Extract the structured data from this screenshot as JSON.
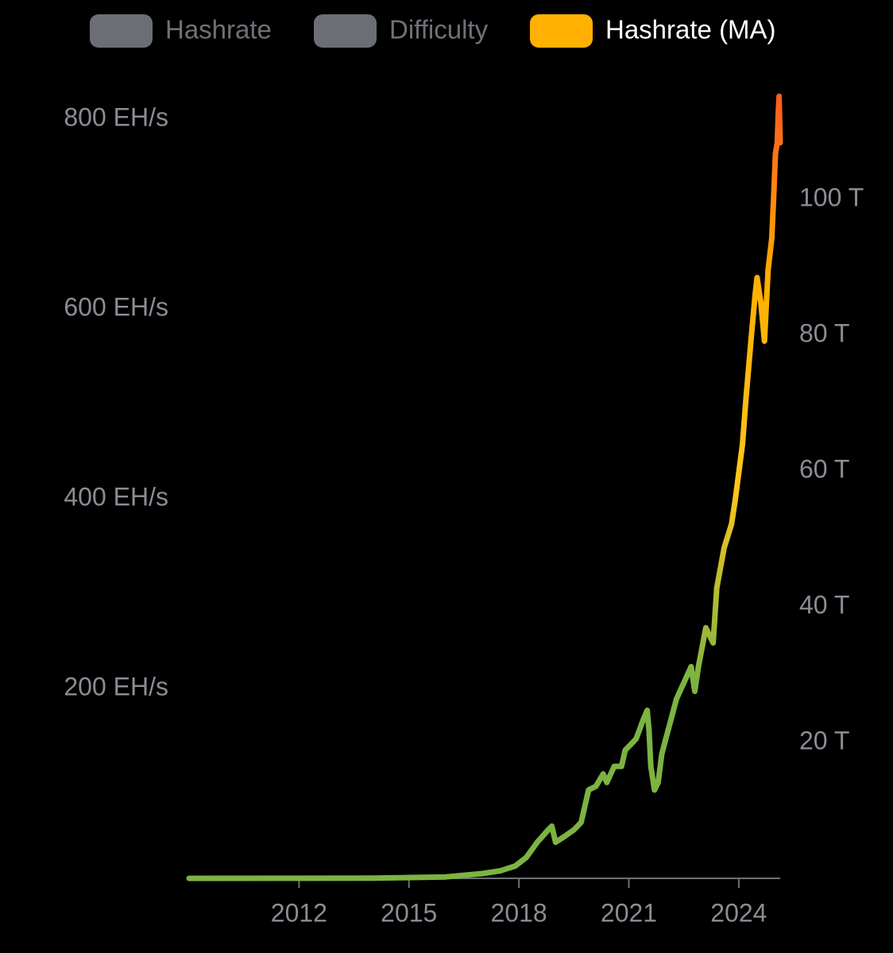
{
  "chart_data": {
    "type": "line",
    "x": [
      2009,
      2014,
      2016,
      2017,
      2017.5,
      2017.9,
      2018.2,
      2018.5,
      2018.8,
      2018.9,
      2019.0,
      2019.2,
      2019.5,
      2019.7,
      2019.9,
      2020.1,
      2020.3,
      2020.4,
      2020.6,
      2020.8,
      2020.9,
      2021.0,
      2021.2,
      2021.4,
      2021.5,
      2021.55,
      2021.6,
      2021.7,
      2021.8,
      2021.9,
      2022.1,
      2022.3,
      2022.5,
      2022.7,
      2022.8,
      2022.9,
      2023.1,
      2023.3,
      2023.4,
      2023.6,
      2023.8,
      2023.9,
      2024.1,
      2024.2,
      2024.35,
      2024.45,
      2024.5,
      2024.6,
      2024.7,
      2024.8,
      2024.9,
      2024.95,
      2025.0,
      2025.05,
      2025.08,
      2025.1,
      2025.13
    ],
    "series": [
      {
        "name": "Hashrate",
        "color": "#6b6e75",
        "hidden": true
      },
      {
        "name": "Difficulty",
        "color": "#6b6e75",
        "hidden": true,
        "axis": "y2"
      },
      {
        "name": "Hashrate (MA)",
        "color": "#ffb000",
        "line_gradient": [
          "#7cb342",
          "#7cb342",
          "#ffc61a",
          "#ffb000",
          "#ff5a1f"
        ],
        "values": [
          0,
          0.2,
          1.5,
          5,
          8,
          13,
          22,
          38,
          51,
          55,
          38,
          43,
          51,
          59,
          93,
          97,
          110,
          101,
          118,
          118,
          135,
          139,
          147,
          168,
          177,
          156,
          118,
          93,
          101,
          131,
          160,
          189,
          206,
          223,
          197,
          223,
          264,
          248,
          306,
          348,
          373,
          398,
          457,
          507,
          574,
          616,
          633,
          607,
          566,
          641,
          674,
          716,
          763,
          775,
          808,
          824,
          775
        ]
      }
    ],
    "xlim": [
      2009,
      2025.13
    ],
    "xticks": [
      2012,
      2015,
      2018,
      2021,
      2024
    ],
    "ylim": [
      0,
      830
    ],
    "yticks": [
      {
        "value": 200,
        "label": "200 EH/s"
      },
      {
        "value": 400,
        "label": "400 EH/s"
      },
      {
        "value": 600,
        "label": "600 EH/s"
      },
      {
        "value": 800,
        "label": "800 EH/s"
      }
    ],
    "y2lim": [
      0,
      116
    ],
    "y2ticks": [
      {
        "value": 20,
        "label": "20 T"
      },
      {
        "value": 40,
        "label": "40 T"
      },
      {
        "value": 60,
        "label": "60 T"
      },
      {
        "value": 80,
        "label": "80 T"
      },
      {
        "value": 100,
        "label": "100 T"
      }
    ],
    "grid": false
  }
}
